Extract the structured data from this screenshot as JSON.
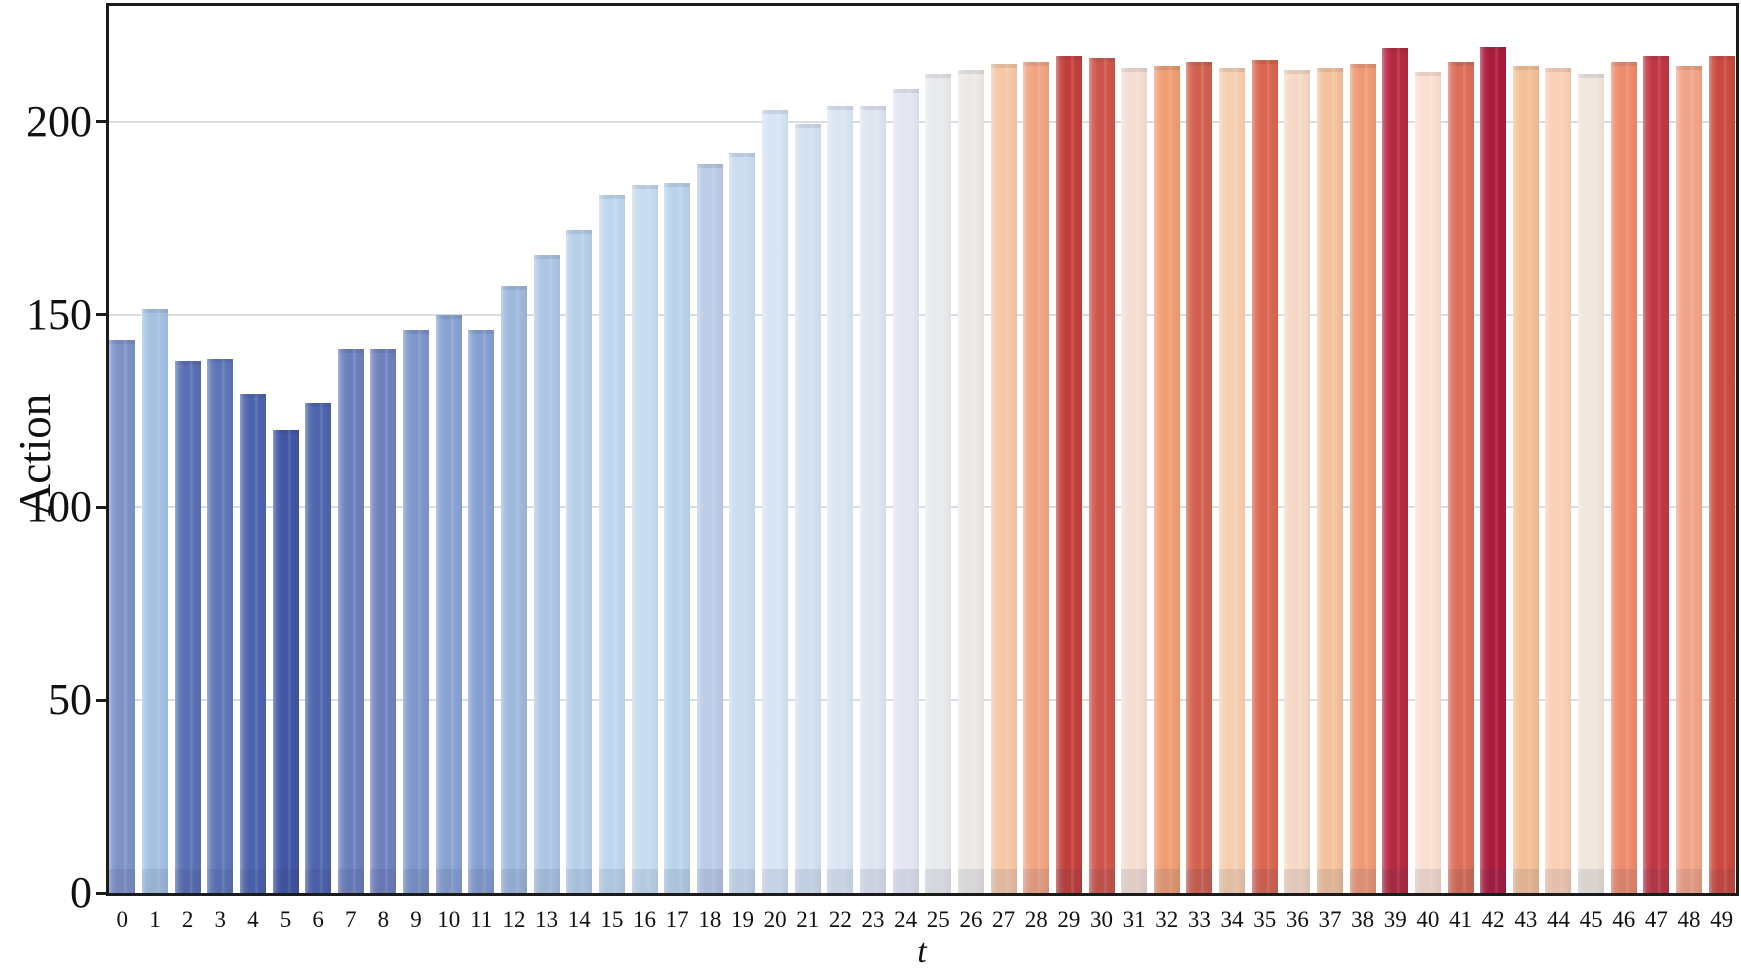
{
  "chart_data": {
    "type": "bar",
    "title": "",
    "xlabel": "t",
    "ylabel": "Action",
    "x": [
      0,
      1,
      2,
      3,
      4,
      5,
      6,
      7,
      8,
      9,
      10,
      11,
      12,
      13,
      14,
      15,
      16,
      17,
      18,
      19,
      20,
      21,
      22,
      23,
      24,
      25,
      26,
      27,
      28,
      29,
      30,
      31,
      32,
      33,
      34,
      35,
      36,
      37,
      38,
      39,
      40,
      41,
      42,
      43,
      44,
      45,
      46,
      47,
      48,
      49
    ],
    "values": [
      143.5,
      151.5,
      138,
      138.5,
      129.5,
      120,
      127,
      141,
      141,
      146,
      150,
      146,
      157.5,
      165.5,
      172,
      181,
      183.5,
      184,
      189,
      192,
      203,
      199.5,
      204,
      204,
      208.5,
      212.5,
      213.5,
      215,
      215.5,
      217,
      216.5,
      214,
      214.5,
      215.5,
      214,
      216,
      213.5,
      214,
      215,
      219,
      213,
      215.5,
      219.5,
      214.5,
      214,
      212.5,
      215.5,
      217,
      214.5,
      217
    ],
    "bar_colors": [
      "#7e91c7",
      "#a3c0e2",
      "#5a70b4",
      "#5e75b8",
      "#4c64ae",
      "#4156a4",
      "#4d64ae",
      "#6d80bd",
      "#7081bf",
      "#7e96ca",
      "#87a2d1",
      "#85a0d0",
      "#a0b8dd",
      "#adc6e5",
      "#b6d0ea",
      "#bfd7ee",
      "#c6dcf1",
      "#bad4ec",
      "#bccbe7",
      "#c9dcf0",
      "#d5e5f4",
      "#d4e1f1",
      "#dae5f3",
      "#dee5f1",
      "#e3e6f3",
      "#e8eaee",
      "#ece9e6",
      "#f6c8a6",
      "#f2a583",
      "#c2403a",
      "#cd564a",
      "#f4ded2",
      "#f09d73",
      "#d2614e",
      "#f7cfae",
      "#da6550",
      "#f6d9c5",
      "#f4c29c",
      "#ef9a74",
      "#b5293f",
      "#fbdfd1",
      "#dc6e5a",
      "#ab1b3c",
      "#f3c096",
      "#f9d0b6",
      "#efe6dc",
      "#ee8b6c",
      "#c03744",
      "#f3a487",
      "#cb4a3e"
    ],
    "ylim": [
      0,
      230
    ],
    "yticks": [
      0,
      50,
      100,
      150,
      200
    ],
    "grid": "horizontal, light gray, behind bars",
    "legend_position": "none",
    "colors": {
      "spine": "#1b1b1b",
      "gridline": "#d9dde1",
      "text": "#111111",
      "background": "#ffffff",
      "palette": "coolwarm (blue low timesteps to red high timesteps)"
    }
  }
}
